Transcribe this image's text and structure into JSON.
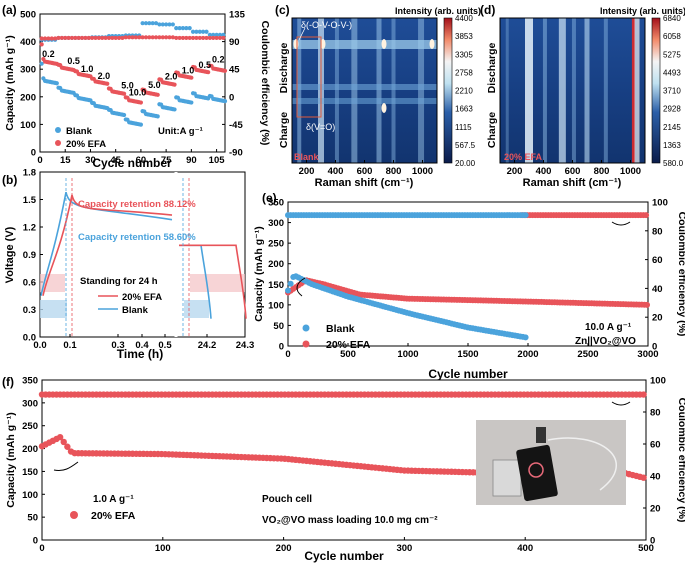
{
  "panels": {
    "a": "(a)",
    "b": "(b)",
    "c": "(c)",
    "d": "(d)",
    "e": "(e)",
    "f": "(f)"
  },
  "chart_data": [
    {
      "id": "a",
      "type": "scatter",
      "title": "",
      "xlabel": "Cycle number",
      "ylabel": "Capacity (mAh g⁻¹)",
      "y2label": "Coulombic efficiency (%)",
      "xlim": [
        0,
        110
      ],
      "ylim": [
        0,
        500
      ],
      "y2lim": [
        -90,
        135
      ],
      "xticks": [
        "0",
        "15",
        "30",
        "45",
        "60",
        "75",
        "90",
        "105"
      ],
      "yticks": [
        "0",
        "100",
        "200",
        "300",
        "400",
        "500"
      ],
      "y2ticks": [
        "-90",
        "-45",
        "0",
        "45",
        "90",
        "135"
      ],
      "unit_note": "Unit:A g⁻¹",
      "rate_labels": [
        "0.2",
        "0.5",
        "1.0",
        "2.0",
        "5.0",
        "10.0",
        "5.0",
        "2.0",
        "1.0",
        "0.5",
        "0.2"
      ],
      "series": [
        {
          "name": "Blank",
          "color": "#4ba3dc",
          "capacity_levels": [
            260,
            225,
            198,
            170,
            145,
            110,
            140,
            165,
            190,
            205,
            195
          ],
          "ce_levels": [
            93,
            96,
            96,
            97,
            99,
            100,
            120,
            118,
            112,
            106,
            101
          ]
        },
        {
          "name": "20% EFA",
          "color": "#e8545a",
          "capacity_levels": [
            330,
            308,
            285,
            258,
            222,
            190,
            218,
            255,
            280,
            300,
            305
          ],
          "ce_levels": [
            95,
            96,
            96,
            96,
            96,
            97,
            97,
            97,
            96,
            96,
            96
          ]
        }
      ],
      "legend": "bottom-left"
    },
    {
      "id": "b",
      "type": "line",
      "xlabel": "Time (h)",
      "ylabel": "Voltage (V)",
      "ylim": [
        0,
        1.8
      ],
      "yticks": [
        "0.0",
        "0.3",
        "0.6",
        "0.9",
        "1.2",
        "1.5",
        "1.8"
      ],
      "xticks": [
        "0.0",
        "0.1",
        "0.3",
        "0.4",
        "0.5",
        "24.2",
        "24.3"
      ],
      "annotations": [
        "Capacity retention 88.12%",
        "Capacity retention 58.60%",
        "Standing for 24 h"
      ],
      "series": [
        {
          "name": "20% EFA",
          "color": "#e8545a",
          "retention": 88.12
        },
        {
          "name": "Blank",
          "color": "#4ba3dc",
          "retention": 58.6
        }
      ],
      "legend": "bottom-right"
    },
    {
      "id": "c",
      "type": "heatmap",
      "xlabel": "Raman shift (cm⁻¹)",
      "xticks": [
        "200",
        "400",
        "600",
        "800",
        "1000"
      ],
      "side_labels": [
        "Discharge",
        "Charge"
      ],
      "colorbar_title": "Intensity (arb. units)",
      "colorbar_ticks": [
        "4400",
        "3853",
        "3305",
        "2758",
        "2210",
        "1663",
        "1115",
        "567.5",
        "20.00"
      ],
      "annotations": [
        "δ(-O-V-O-V-)",
        "δ(V=O)"
      ],
      "sample": "Blank"
    },
    {
      "id": "d",
      "type": "heatmap",
      "xlabel": "Raman shift (cm⁻¹)",
      "xticks": [
        "200",
        "400",
        "600",
        "800",
        "1000"
      ],
      "side_labels": [
        "Discharge",
        "Charge"
      ],
      "colorbar_title": "Intensity (arb. units)",
      "colorbar_ticks": [
        "6840",
        "6058",
        "5275",
        "4493",
        "3710",
        "2928",
        "2145",
        "1363",
        "580.0"
      ],
      "sample": "20% EFA"
    },
    {
      "id": "e",
      "type": "scatter",
      "xlabel": "Cycle number",
      "ylabel": "Capacity (mAh g⁻¹)",
      "y2label": "Coulombic efficiency (%)",
      "xlim": [
        0,
        3000
      ],
      "ylim": [
        0,
        350
      ],
      "y2lim": [
        0,
        110
      ],
      "xticks": [
        "0",
        "500",
        "1000",
        "1500",
        "2000",
        "2500",
        "3000"
      ],
      "yticks": [
        "0",
        "50",
        "100",
        "150",
        "200",
        "250",
        "300",
        "350"
      ],
      "y2ticks": [
        "0",
        "20",
        "40",
        "60",
        "80",
        "100"
      ],
      "notes": [
        "10.0 A g⁻¹",
        "Zn||VO₂@VO"
      ],
      "series": [
        {
          "name": "Blank",
          "color": "#4ba3dc",
          "capacity_points": [
            [
              0,
              135
            ],
            [
              50,
              172
            ],
            [
              200,
              150
            ],
            [
              500,
              120
            ],
            [
              1000,
              80
            ],
            [
              1500,
              45
            ],
            [
              2000,
              20
            ]
          ],
          "ce": 100,
          "ce_end": 2000
        },
        {
          "name": "20% EFA",
          "color": "#e8545a",
          "capacity_points": [
            [
              0,
              130
            ],
            [
              150,
              160
            ],
            [
              300,
              150
            ],
            [
              600,
              125
            ],
            [
              1000,
              115
            ],
            [
              2000,
              108
            ],
            [
              3000,
              100
            ]
          ],
          "ce": 100,
          "ce_end": 3000
        }
      ],
      "legend": "bottom-left"
    },
    {
      "id": "f",
      "type": "scatter",
      "xlabel": "Cycle number",
      "ylabel": "Capacity (mAh g⁻¹)",
      "y2label": "Coulombic efficiency (%)",
      "xlim": [
        0,
        500
      ],
      "ylim": [
        0,
        350
      ],
      "y2lim": [
        0,
        110
      ],
      "xticks": [
        "0",
        "100",
        "200",
        "300",
        "400",
        "500"
      ],
      "yticks": [
        "0",
        "50",
        "100",
        "150",
        "200",
        "250",
        "300",
        "350"
      ],
      "y2ticks": [
        "0",
        "20",
        "40",
        "60",
        "80",
        "100"
      ],
      "notes": [
        "1.0 A g⁻¹",
        "Pouch cell",
        "VO₂@VO mass loading 10.0 mg cm⁻²"
      ],
      "series": [
        {
          "name": "20% EFA",
          "color": "#e8545a",
          "capacity_points": [
            [
              0,
              205
            ],
            [
              15,
              225
            ],
            [
              25,
              190
            ],
            [
              100,
              188
            ],
            [
              200,
              178
            ],
            [
              300,
              152
            ],
            [
              400,
              145
            ],
            [
              480,
              148
            ],
            [
              500,
              135
            ]
          ],
          "ce": 100
        }
      ],
      "legend": "bottom-left"
    }
  ]
}
